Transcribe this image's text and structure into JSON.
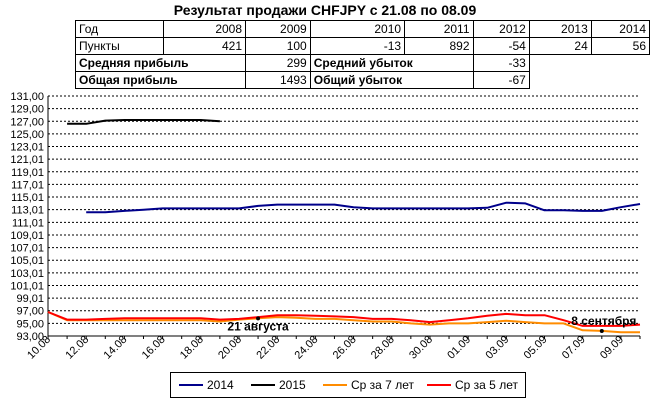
{
  "title": "Результат продажи CHFJPY с 21.08 по 08.09",
  "stats_table": {
    "year_label": "Год",
    "years": [
      "2008",
      "2009",
      "2010",
      "2011",
      "2012",
      "2013",
      "2014"
    ],
    "points_label": "Пункты",
    "points": [
      "421",
      "100",
      "-13",
      "892",
      "-54",
      "24",
      "56"
    ],
    "avg_profit_label": "Средняя прибыль",
    "avg_profit": "299",
    "avg_loss_label": "Средний убыток",
    "avg_loss": "-33",
    "total_profit_label": "Общая прибыль",
    "total_profit": "1493",
    "total_loss_label": "Общий убыток",
    "total_loss": "-67"
  },
  "chart_data": {
    "type": "line",
    "x": [
      "10.08",
      "11.08",
      "12.08",
      "13.08",
      "14.08",
      "15.08",
      "16.08",
      "17.08",
      "18.08",
      "19.08",
      "20.08",
      "21.08",
      "22.08",
      "23.08",
      "24.08",
      "25.08",
      "26.08",
      "27.08",
      "28.08",
      "29.08",
      "30.08",
      "31.08",
      "01.09",
      "02.09",
      "03.09",
      "04.09",
      "05.09",
      "06.09",
      "07.09",
      "08.09",
      "09.09",
      "10.09"
    ],
    "x_tick_labels": [
      "10.08",
      "12.08",
      "14.08",
      "16.08",
      "18.08",
      "20.08",
      "22.08",
      "24.08",
      "26.08",
      "28.08",
      "30.08",
      "01.09",
      "03.09",
      "05.09",
      "07.09",
      "09.09"
    ],
    "y_tick_labels": [
      "93,00",
      "95,00",
      "97,00",
      "99,01",
      "101,01",
      "103,01",
      "105,01",
      "107,01",
      "109,01",
      "111,01",
      "113,01",
      "115,01",
      "117,01",
      "119,01",
      "121,01",
      "123,01",
      "125,00",
      "127,00",
      "129,00",
      "131,00"
    ],
    "ylim": [
      93.0,
      131.0
    ],
    "grid": true,
    "legend_position": "bottom",
    "series": [
      {
        "name": "2014",
        "color": "#00008b",
        "values": [
          null,
          null,
          112.6,
          112.6,
          112.8,
          113.0,
          113.2,
          113.2,
          113.2,
          113.2,
          113.2,
          113.6,
          113.8,
          113.8,
          113.8,
          113.8,
          113.4,
          113.2,
          113.2,
          113.2,
          113.2,
          113.2,
          113.2,
          113.3,
          114.1,
          114.0,
          112.9,
          112.9,
          112.8,
          112.8,
          113.4,
          113.9
        ]
      },
      {
        "name": "2015",
        "color": "#000000",
        "values": [
          null,
          126.6,
          126.6,
          127.1,
          127.2,
          127.2,
          127.2,
          127.2,
          127.2,
          127.0,
          null,
          null,
          null,
          null,
          null,
          null,
          null,
          null,
          null,
          null,
          null,
          null,
          null,
          null,
          null,
          null,
          null,
          null,
          null,
          null,
          null,
          null
        ]
      },
      {
        "name": "Ср за 7 лет",
        "color": "#ff8c00",
        "values": [
          96.8,
          95.5,
          95.5,
          95.5,
          95.5,
          95.5,
          95.5,
          95.5,
          95.5,
          95.3,
          95.6,
          95.8,
          96.0,
          95.9,
          95.7,
          95.7,
          95.5,
          95.3,
          95.3,
          95.0,
          94.8,
          95.0,
          95.0,
          95.2,
          95.4,
          95.2,
          95.0,
          95.0,
          93.9,
          93.8,
          93.6,
          93.6
        ]
      },
      {
        "name": "Ср за 5 лет",
        "color": "#ff0000",
        "values": [
          96.8,
          95.6,
          95.6,
          95.7,
          95.8,
          95.8,
          95.8,
          95.8,
          95.8,
          95.6,
          95.7,
          96.0,
          96.3,
          96.3,
          96.2,
          96.1,
          96.0,
          95.7,
          95.7,
          95.5,
          95.2,
          95.5,
          95.8,
          96.2,
          96.5,
          96.3,
          96.3,
          95.5,
          94.6,
          94.6,
          94.6,
          94.8
        ]
      }
    ],
    "annotations": [
      {
        "text": "21 августа",
        "x": "21.08",
        "y": 95.8
      },
      {
        "text": "8 сентября",
        "x": "08.09",
        "y": 93.8
      }
    ]
  }
}
